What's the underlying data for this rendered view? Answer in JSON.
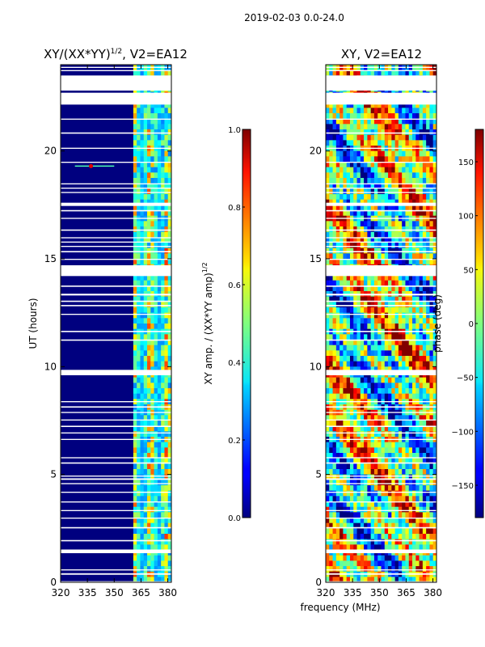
{
  "suptitle": "2019-02-03 0.0-24.0",
  "xlabel": "frequency (MHz)",
  "colors": {
    "background": "#ffffff",
    "axis": "#000000",
    "empty_band": "#ffffff"
  },
  "chart_data": [
    {
      "type": "heatmap",
      "title_main": "XY/(XX*YY)",
      "title_exp": "1/2",
      "title_tail": ", V2=EA12",
      "xlabel": "",
      "ylabel": "UT (hours)",
      "x_ticks": [
        320,
        335,
        350,
        365,
        380
      ],
      "x_range": [
        320,
        382
      ],
      "y_ticks": [
        0,
        5,
        10,
        15,
        20
      ],
      "y_range": [
        0,
        24
      ],
      "colorbar": {
        "colormap": "jet",
        "label_main": "XY amp. / (XX*YY amp)",
        "label_exp": "1/2",
        "range": [
          0.0,
          1.0
        ],
        "tick_labels": [
          "0.0",
          "0.2",
          "0.4",
          "0.6",
          "0.8",
          "1.0"
        ],
        "tick_values": [
          0.0,
          0.2,
          0.4,
          0.6,
          0.8,
          1.0
        ]
      },
      "description_values": {
        "low_freq_level": 0.05,
        "high_freq_band_start_mhz": 360,
        "high_freq_level_range": [
          0.3,
          0.9
        ]
      }
    },
    {
      "type": "heatmap",
      "title_main": "XY, V2=EA12",
      "xlabel": "frequency (MHz)",
      "ylabel": "",
      "x_ticks": [
        320,
        335,
        350,
        365,
        380
      ],
      "x_range": [
        320,
        382
      ],
      "y_ticks": [
        0,
        5,
        10,
        15,
        20
      ],
      "y_range": [
        0,
        24
      ],
      "colorbar": {
        "colormap": "jet",
        "label_main": "phase (deg)",
        "range": [
          -180,
          180
        ],
        "tick_labels": [
          "−150",
          "−100",
          "−50",
          "0",
          "50",
          "100",
          "150"
        ],
        "tick_values": [
          -150,
          -100,
          -50,
          0,
          50,
          100,
          150
        ]
      }
    }
  ],
  "gaps_hours": [
    [
      0.0,
      0.05
    ],
    [
      0.35,
      0.42
    ],
    [
      0.55,
      0.6
    ],
    [
      1.35,
      1.52
    ],
    [
      1.9,
      1.96
    ],
    [
      2.5,
      2.56
    ],
    [
      2.95,
      3.0
    ],
    [
      3.3,
      3.35
    ],
    [
      3.7,
      3.75
    ],
    [
      4.15,
      4.2
    ],
    [
      4.55,
      4.6
    ],
    [
      4.75,
      4.82
    ],
    [
      4.9,
      4.95
    ],
    [
      5.5,
      5.56
    ],
    [
      5.75,
      5.8
    ],
    [
      6.6,
      6.65
    ],
    [
      6.9,
      6.95
    ],
    [
      7.2,
      7.26
    ],
    [
      7.5,
      7.55
    ],
    [
      7.85,
      7.9
    ],
    [
      8.1,
      8.16
    ],
    [
      8.35,
      8.4
    ],
    [
      9.6,
      9.85
    ],
    [
      11.2,
      11.26
    ],
    [
      11.6,
      11.66
    ],
    [
      12.4,
      12.45
    ],
    [
      12.8,
      12.86
    ],
    [
      13.0,
      13.06
    ],
    [
      13.3,
      13.38
    ],
    [
      13.7,
      13.76
    ],
    [
      14.2,
      14.7
    ],
    [
      14.95,
      15.0
    ],
    [
      15.3,
      15.36
    ],
    [
      15.55,
      15.6
    ],
    [
      15.75,
      15.8
    ],
    [
      15.95,
      16.0
    ],
    [
      16.3,
      16.36
    ],
    [
      16.85,
      16.9
    ],
    [
      17.2,
      17.26
    ],
    [
      17.45,
      17.6
    ],
    [
      18.05,
      18.1
    ],
    [
      18.25,
      18.3
    ],
    [
      18.45,
      18.5
    ],
    [
      19.45,
      19.5
    ],
    [
      20.1,
      20.15
    ],
    [
      20.8,
      20.86
    ],
    [
      21.45,
      21.5
    ],
    [
      22.15,
      22.7
    ],
    [
      22.8,
      23.5
    ],
    [
      23.7,
      23.75
    ],
    [
      23.85,
      23.9
    ]
  ]
}
